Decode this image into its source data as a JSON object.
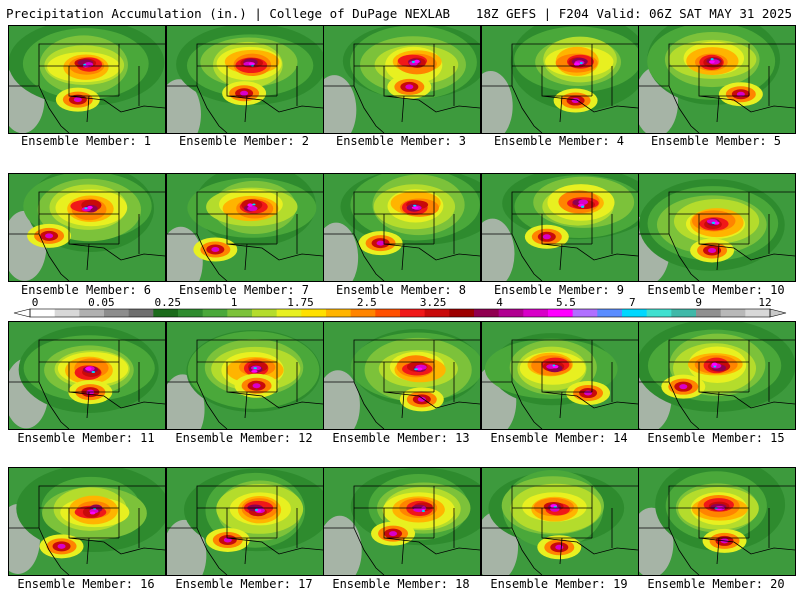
{
  "header": {
    "left_title": "Precipitation Accumulation (in.) | College of DuPage NEXLAB",
    "right_title": "18Z GEFS | F204 Valid: 06Z SAT MAY 31 2025"
  },
  "panels": [
    {
      "label": "Ensemble Member: 1"
    },
    {
      "label": "Ensemble Member: 2"
    },
    {
      "label": "Ensemble Member: 3"
    },
    {
      "label": "Ensemble Member: 4"
    },
    {
      "label": "Ensemble Member: 5"
    },
    {
      "label": "Ensemble Member: 6"
    },
    {
      "label": "Ensemble Member: 7"
    },
    {
      "label": "Ensemble Member: 8"
    },
    {
      "label": "Ensemble Member: 9"
    },
    {
      "label": "Ensemble Member: 10"
    },
    {
      "label": "Ensemble Member: 11"
    },
    {
      "label": "Ensemble Member: 12"
    },
    {
      "label": "Ensemble Member: 13"
    },
    {
      "label": "Ensemble Member: 14"
    },
    {
      "label": "Ensemble Member: 15"
    },
    {
      "label": "Ensemble Member: 16"
    },
    {
      "label": "Ensemble Member: 17"
    },
    {
      "label": "Ensemble Member: 18"
    },
    {
      "label": "Ensemble Member: 19"
    },
    {
      "label": "Ensemble Member: 20"
    }
  ],
  "colorbar": {
    "tick_labels": [
      "0",
      "0.05",
      "0.25",
      "1",
      "1.75",
      "2.5",
      "3.25",
      "4",
      "5.5",
      "7",
      "9",
      "12"
    ],
    "colors": [
      "#ffffff",
      "#d8d8d8",
      "#b0b0b0",
      "#8c8c8c",
      "#6e6e6e",
      "#1b6b1b",
      "#2e8b2e",
      "#4aa83a",
      "#7cc23a",
      "#b4dc2c",
      "#e8f020",
      "#ffe000",
      "#ffb400",
      "#ff8400",
      "#ff5000",
      "#f01818",
      "#c80a0a",
      "#9c0000",
      "#900050",
      "#b00090",
      "#d800c8",
      "#ff00ff",
      "#b070ff",
      "#5a8cff",
      "#00d8ff",
      "#40e0d0",
      "#40b8a8",
      "#909090",
      "#b8b8b8",
      "#d8d8d8"
    ]
  }
}
